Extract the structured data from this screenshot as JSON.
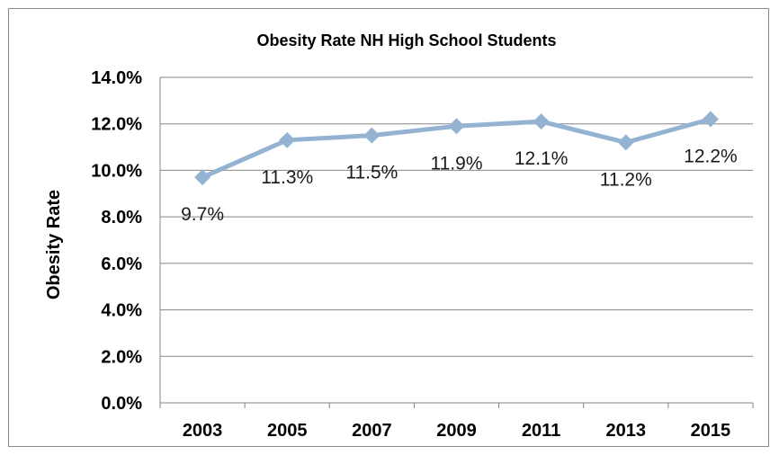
{
  "chart_data": {
    "type": "line",
    "title": "Obesity Rate NH High School Students",
    "xlabel": "",
    "ylabel": "Obesity Rate",
    "categories": [
      "2003",
      "2005",
      "2007",
      "2009",
      "2011",
      "2013",
      "2015"
    ],
    "series": [
      {
        "values": [
          9.7,
          11.3,
          11.5,
          11.9,
          12.1,
          11.2,
          12.2
        ],
        "labels": [
          "9.7%",
          "11.3%",
          "11.5%",
          "11.9%",
          "12.1%",
          "11.2%",
          "12.2%"
        ],
        "color": "#94b3d3"
      }
    ],
    "ylim": [
      0,
      14
    ],
    "yticks": [
      "0.0%",
      "2.0%",
      "4.0%",
      "6.0%",
      "8.0%",
      "10.0%",
      "12.0%",
      "14.0%"
    ],
    "grid": true,
    "legend": "none"
  }
}
